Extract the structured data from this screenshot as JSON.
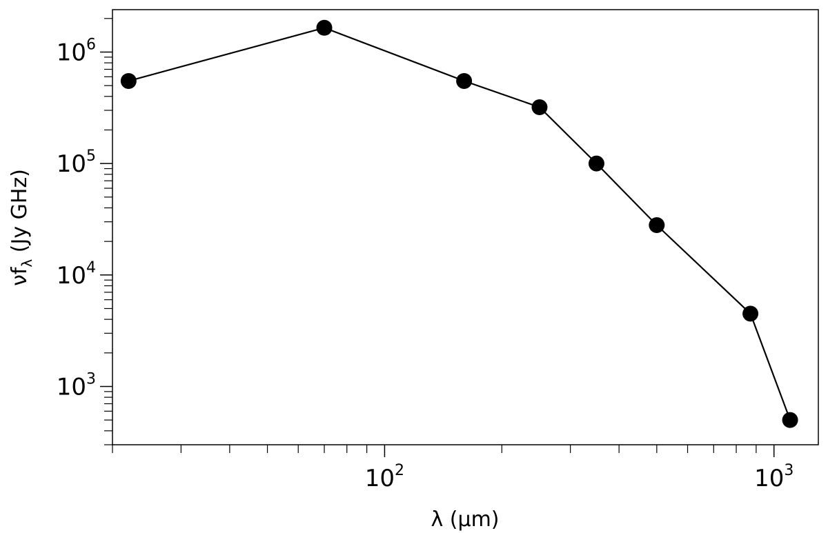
{
  "chart_data": {
    "type": "line",
    "xscale": "log",
    "yscale": "log",
    "xlabel": "λ (μm)",
    "ylabel": "νfλ (Jy GHz)",
    "ylabel_main": "νf",
    "ylabel_sub": "λ",
    "ylabel_unit": " (Jy GHz)",
    "xlim": [
      20,
      1300
    ],
    "ylim": [
      300,
      2400000
    ],
    "grid": false,
    "x_ticks": [
      {
        "value": 100,
        "base": "10",
        "exp": "2"
      },
      {
        "value": 1000,
        "base": "10",
        "exp": "3"
      }
    ],
    "y_ticks": [
      {
        "value": 1000,
        "base": "10",
        "exp": "3"
      },
      {
        "value": 10000,
        "base": "10",
        "exp": "4"
      },
      {
        "value": 100000,
        "base": "10",
        "exp": "5"
      },
      {
        "value": 1000000,
        "base": "10",
        "exp": "6"
      }
    ],
    "series": [
      {
        "color": "#000000",
        "marker": "circle",
        "x": [
          22,
          70,
          160,
          250,
          350,
          500,
          870,
          1100
        ],
        "y": [
          550000,
          1650000,
          550000,
          320000,
          100000,
          28000,
          4500,
          500
        ]
      }
    ]
  }
}
